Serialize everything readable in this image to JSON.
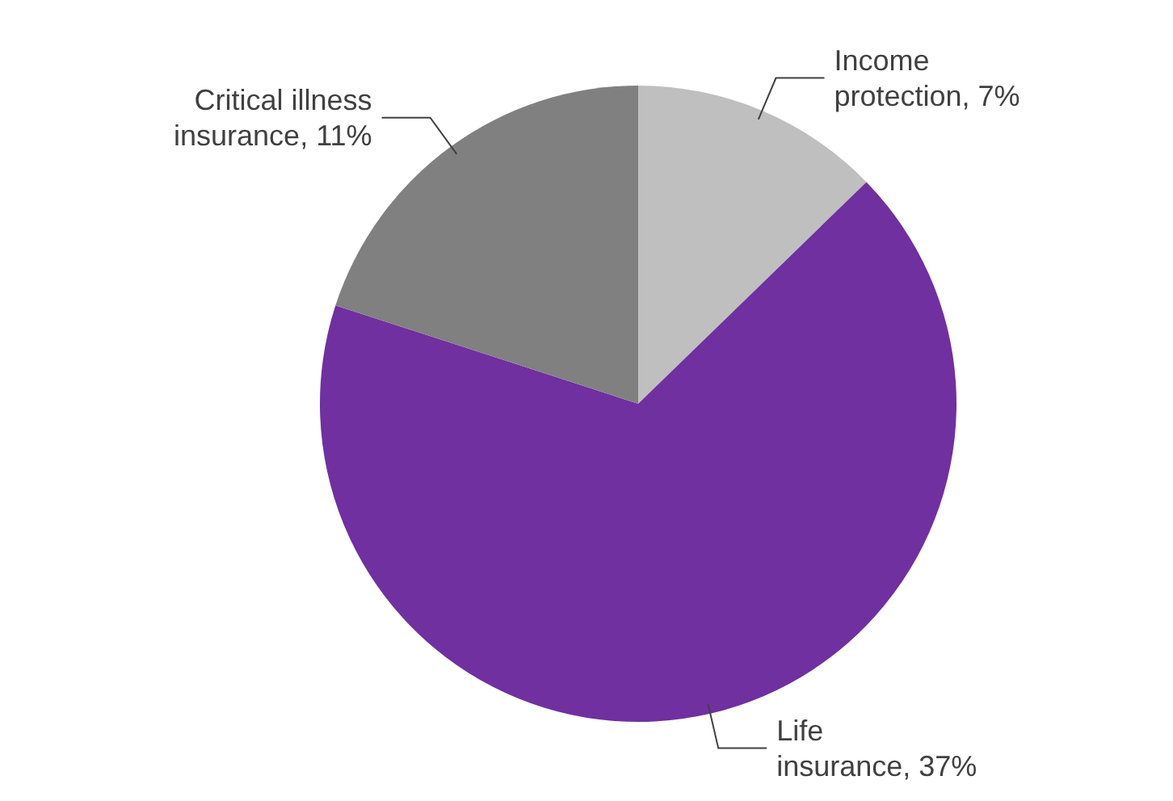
{
  "chart_data": {
    "type": "pie",
    "categories": [
      "Income protection",
      "Life insurance",
      "Critical illness insurance"
    ],
    "values": [
      7,
      37,
      11
    ],
    "value_labels": [
      "7%",
      "37%",
      "11%"
    ],
    "colors": [
      "#bfbfbf",
      "#7030a0",
      "#808080"
    ],
    "legend": false
  }
}
